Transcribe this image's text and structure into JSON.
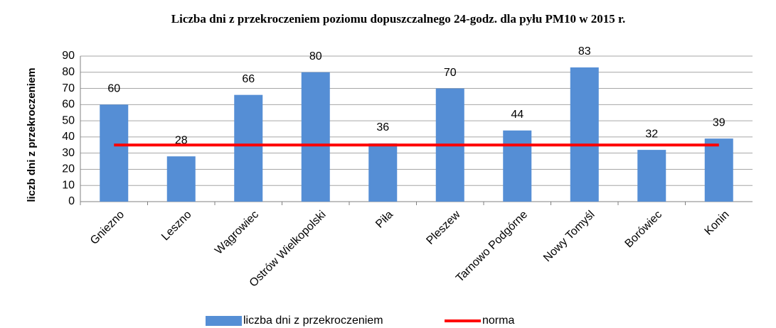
{
  "chart_data": {
    "type": "bar",
    "title": "Liczba dni z przekroczeniem poziomu dopuszczalnego 24-godz. dla pyłu PM10 w 2015 r.",
    "y_label": "liczb dni z przekroczeniem",
    "categories": [
      "Gniezno",
      "Leszno",
      "Wągrowiec",
      "Ostrów Wielkopolski",
      "Piła",
      "Pleszew",
      "Tarnowo Podgórne",
      "Nowy Tomyśl",
      "Borówiec",
      "Konin"
    ],
    "series": [
      {
        "name": "liczba dni z przekroczeniem",
        "type": "bar",
        "color": "#558ed5",
        "values": [
          60,
          28,
          66,
          80,
          36,
          70,
          44,
          83,
          32,
          39
        ]
      },
      {
        "name": "norma",
        "type": "line",
        "color": "#ff0000",
        "values": [
          35,
          35,
          35,
          35,
          35,
          35,
          35,
          35,
          35,
          35
        ]
      }
    ],
    "ylim": [
      0,
      90
    ],
    "yticks": [
      0,
      10,
      20,
      30,
      40,
      50,
      60,
      70,
      80,
      90
    ],
    "grid": true,
    "legend": "bottom"
  }
}
